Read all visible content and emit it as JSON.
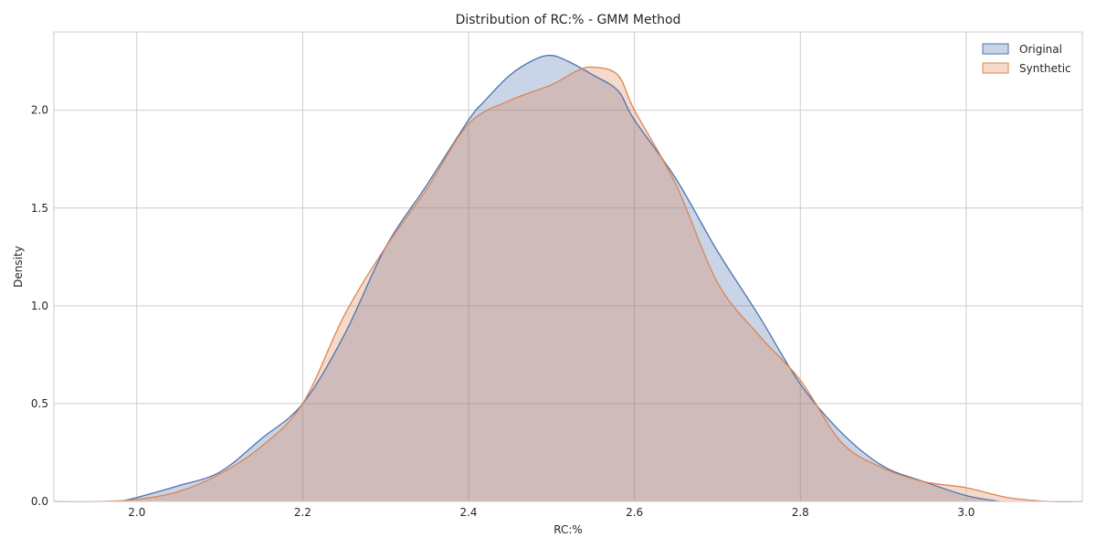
{
  "chart_data": {
    "type": "area",
    "title": "Distribution of RC:% - GMM Method",
    "xlabel": "RC:%",
    "ylabel": "Density",
    "xlim": [
      1.9,
      3.14
    ],
    "ylim": [
      0.0,
      2.4
    ],
    "xticks": [
      "2.0",
      "2.2",
      "2.4",
      "2.6",
      "2.8",
      "3.0"
    ],
    "yticks": [
      "0.0",
      "0.5",
      "1.0",
      "1.5",
      "2.0"
    ],
    "grid": true,
    "legend_position": "top-right",
    "series": [
      {
        "name": "Original",
        "color": "#4c72b0",
        "fill": "#c7d2e7",
        "x": [
          1.98,
          2.0,
          2.05,
          2.1,
          2.15,
          2.2,
          2.25,
          2.3,
          2.35,
          2.4,
          2.42,
          2.45,
          2.48,
          2.5,
          2.52,
          2.55,
          2.58,
          2.6,
          2.65,
          2.7,
          2.75,
          2.8,
          2.85,
          2.9,
          2.95,
          3.0,
          3.04
        ],
        "y": [
          0.0,
          0.02,
          0.08,
          0.15,
          0.32,
          0.5,
          0.85,
          1.3,
          1.62,
          1.95,
          2.05,
          2.18,
          2.26,
          2.28,
          2.25,
          2.18,
          2.1,
          1.95,
          1.65,
          1.28,
          0.95,
          0.6,
          0.35,
          0.18,
          0.1,
          0.03,
          0.0
        ]
      },
      {
        "name": "Synthetic",
        "color": "#dd8452",
        "fill": "#f6d0bd",
        "x": [
          1.9,
          1.95,
          2.0,
          2.05,
          2.1,
          2.15,
          2.2,
          2.25,
          2.3,
          2.35,
          2.4,
          2.45,
          2.5,
          2.53,
          2.55,
          2.58,
          2.6,
          2.65,
          2.7,
          2.75,
          2.8,
          2.85,
          2.9,
          2.95,
          3.0,
          3.05,
          3.1,
          3.14
        ],
        "y": [
          0.0,
          0.0,
          0.01,
          0.05,
          0.14,
          0.28,
          0.5,
          0.95,
          1.3,
          1.6,
          1.93,
          2.05,
          2.13,
          2.2,
          2.22,
          2.18,
          2.0,
          1.62,
          1.12,
          0.85,
          0.62,
          0.3,
          0.17,
          0.1,
          0.07,
          0.02,
          0.0,
          0.0
        ]
      }
    ]
  }
}
